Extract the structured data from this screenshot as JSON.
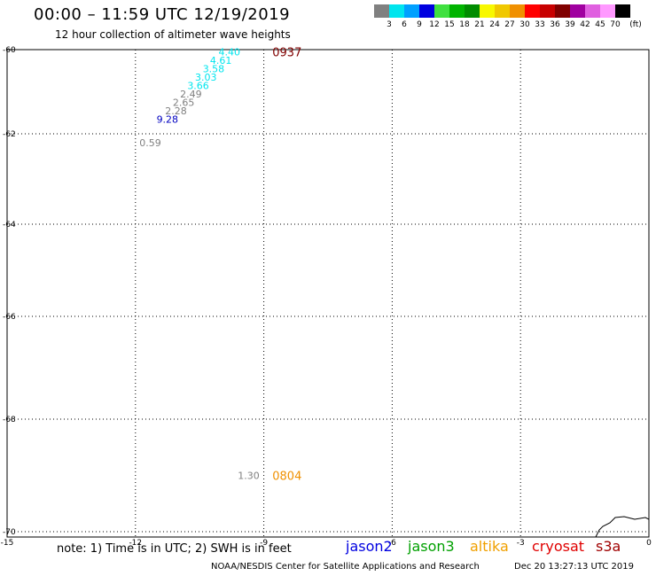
{
  "header": {
    "title": "00:00 – 11:59 UTC 12/19/2019",
    "subtitle": "12 hour collection of altimeter wave heights"
  },
  "legend": {
    "unit": "(ft)",
    "items": [
      {
        "label": "3",
        "color": "#808080"
      },
      {
        "label": "6",
        "color": "#00e5ee"
      },
      {
        "label": "9",
        "color": "#00a0ff"
      },
      {
        "label": "12",
        "color": "#0000e0"
      },
      {
        "label": "15",
        "color": "#40e040"
      },
      {
        "label": "18",
        "color": "#00b400"
      },
      {
        "label": "21",
        "color": "#008c00"
      },
      {
        "label": "24",
        "color": "#f8f800"
      },
      {
        "label": "27",
        "color": "#f0c800"
      },
      {
        "label": "30",
        "color": "#f09000"
      },
      {
        "label": "33",
        "color": "#ff0000"
      },
      {
        "label": "36",
        "color": "#c80000"
      },
      {
        "label": "39",
        "color": "#800000"
      },
      {
        "label": "42",
        "color": "#a000a0"
      },
      {
        "label": "45",
        "color": "#e060e0"
      },
      {
        "label": "70",
        "color": "#ff99ff"
      },
      {
        "label": "",
        "color": "#000000"
      }
    ]
  },
  "map": {
    "lon_range": [
      -15,
      0
    ],
    "lat_range": [
      -70,
      -60
    ],
    "lon_ticks": [
      "-15",
      "-12",
      "-9",
      "-6",
      "-3",
      "0"
    ],
    "lat_ticks": [
      "-60",
      "-62",
      "-64",
      "-66",
      "-68",
      "-70"
    ],
    "readings": [
      {
        "text": "4.40",
        "lon": -9.55,
        "lat": -60.05,
        "color": "#00e5ee"
      },
      {
        "text": "4.61",
        "lon": -9.75,
        "lat": -60.25,
        "color": "#00e5ee"
      },
      {
        "text": "3.58",
        "lon": -9.92,
        "lat": -60.45,
        "color": "#00e5ee"
      },
      {
        "text": "3.03",
        "lon": -10.1,
        "lat": -60.65,
        "color": "#00e5ee"
      },
      {
        "text": "3.66",
        "lon": -10.28,
        "lat": -60.85,
        "color": "#00e5ee"
      },
      {
        "text": "2.49",
        "lon": -10.45,
        "lat": -61.05,
        "color": "#808080"
      },
      {
        "text": "2.65",
        "lon": -10.62,
        "lat": -61.25,
        "color": "#808080"
      },
      {
        "text": "2.28",
        "lon": -10.8,
        "lat": -61.45,
        "color": "#808080"
      },
      {
        "text": "9.28",
        "lon": -11.0,
        "lat": -61.65,
        "color": "#0000c0"
      },
      {
        "text": "0.59",
        "lon": -11.4,
        "lat": -62.2,
        "color": "#808080"
      },
      {
        "text": "1.30",
        "lon": -9.1,
        "lat": -69.0,
        "color": "#808080"
      }
    ],
    "pass_times": [
      {
        "text": "0937",
        "lon": -8.8,
        "lat": -60.05,
        "color": "#800000"
      },
      {
        "text": "0804",
        "lon": -8.8,
        "lat": -69.0,
        "color": "#f09000"
      }
    ]
  },
  "note": "note: 1) Time is in UTC; 2) SWH is in feet",
  "satellites": [
    {
      "name": "jason2",
      "color": "#0000e0"
    },
    {
      "name": "jason3",
      "color": "#00a000"
    },
    {
      "name": "altika",
      "color": "#f0a000"
    },
    {
      "name": "cryosat",
      "color": "#e00000"
    },
    {
      "name": "s3a",
      "color": "#a00000"
    }
  ],
  "footer": {
    "credit": "NOAA/NESDIS Center for Satellite Applications and Research",
    "timestamp": "Dec 20 13:27:13 UTC 2019"
  }
}
